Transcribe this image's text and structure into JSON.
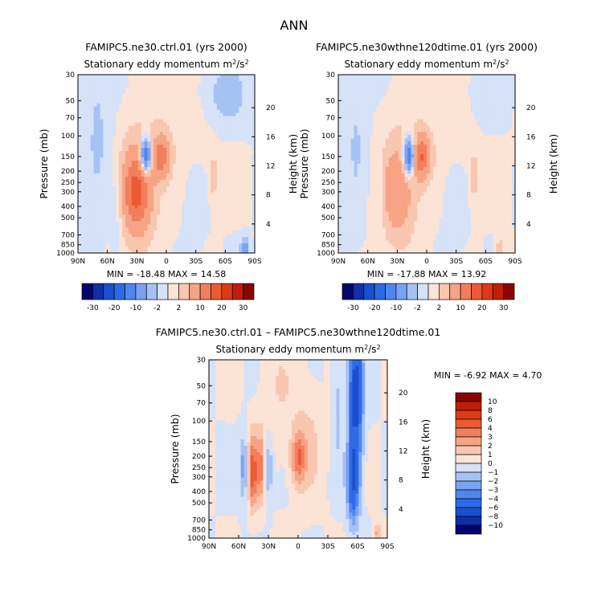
{
  "page_title": "ANN",
  "chart_data": [
    {
      "type": "heatmap",
      "title": "FAMIPC5.ne30.ctrl.01 (yrs 2000)",
      "subtitle": "Stationary eddy momentum",
      "units_base": "m",
      "units_sup": "2",
      "units_tail": "/s",
      "units_sup2": "2",
      "xlabel": "",
      "ylabel": "Pressure (mb)",
      "ylabel_right": "Height (km)",
      "x_ticks": [
        "90N",
        "60N",
        "30N",
        "0",
        "30S",
        "60S",
        "90S"
      ],
      "y_ticks": [
        "30",
        "50",
        "70",
        "100",
        "150",
        "200",
        "250",
        "300",
        "400",
        "500",
        "700",
        "850",
        "1000"
      ],
      "height_ticks": [
        "20",
        "16",
        "12",
        "8",
        "4"
      ],
      "min_label": "MIN =",
      "min_value": "-18.48",
      "max_label": "MAX =",
      "max_value": "14.58",
      "blobs": [
        {
          "lat": 30,
          "p": 300,
          "sx": 10,
          "sy": 0.55,
          "v": 14.58
        },
        {
          "lat": 27,
          "p": 250,
          "sx": 16,
          "sy": 0.9,
          "v": 3
        },
        {
          "lat": 5,
          "p": 150,
          "sx": 6,
          "sy": 0.3,
          "v": 12
        },
        {
          "lat": 21,
          "p": 150,
          "sx": 4,
          "sy": 0.25,
          "v": -18.48
        },
        {
          "lat": 70,
          "p": 80,
          "sx": 9,
          "sy": 1.2,
          "v": -2.5
        },
        {
          "lat": -58,
          "p": 45,
          "sx": 18,
          "sy": 0.5,
          "v": -4
        },
        {
          "lat": 50,
          "p": 350,
          "sx": 4,
          "sy": 0.6,
          "v": -2.5
        },
        {
          "lat": -48,
          "p": 230,
          "sx": 2.5,
          "sy": 0.4,
          "v": 3
        },
        {
          "lat": -28,
          "p": 350,
          "sx": 7,
          "sy": 0.6,
          "v": -1.5
        },
        {
          "lat": -80,
          "p": 900,
          "sx": 3,
          "sy": 0.12,
          "v": -8
        },
        {
          "lat": -30,
          "p": 60,
          "sx": 30,
          "sy": 0.9,
          "v": 1.5
        }
      ]
    },
    {
      "type": "heatmap",
      "title": "FAMIPC5.ne30wthne120dtime.01 (yrs 2000)",
      "subtitle": "Stationary eddy momentum",
      "units_base": "m",
      "units_sup": "2",
      "units_tail": "/s",
      "units_sup2": "2",
      "xlabel": "",
      "ylabel": "Pressure (mb)",
      "ylabel_right": "Height (km)",
      "x_ticks": [
        "90N",
        "60N",
        "30N",
        "0",
        "30S",
        "60S",
        "90S"
      ],
      "y_ticks": [
        "30",
        "50",
        "70",
        "100",
        "150",
        "200",
        "250",
        "300",
        "400",
        "500",
        "700",
        "850",
        "1000"
      ],
      "height_ticks": [
        "20",
        "16",
        "12",
        "8",
        "4"
      ],
      "min_label": "MIN =",
      "min_value": "-17.88",
      "max_label": "MAX =",
      "max_value": "13.92",
      "blobs": [
        {
          "lat": 30,
          "p": 300,
          "sx": 11,
          "sy": 0.6,
          "v": 7
        },
        {
          "lat": 27,
          "p": 250,
          "sx": 16,
          "sy": 0.9,
          "v": 2.5
        },
        {
          "lat": 5,
          "p": 150,
          "sx": 6,
          "sy": 0.3,
          "v": 13.92
        },
        {
          "lat": 18,
          "p": 150,
          "sx": 4,
          "sy": 0.25,
          "v": -17.88
        },
        {
          "lat": 72,
          "p": 100,
          "sx": 8,
          "sy": 1.1,
          "v": -2.2
        },
        {
          "lat": -58,
          "p": 45,
          "sx": 16,
          "sy": 0.5,
          "v": -2.5
        },
        {
          "lat": 48,
          "p": 300,
          "sx": 4,
          "sy": 0.6,
          "v": -2.5
        },
        {
          "lat": -48,
          "p": 230,
          "sx": 3,
          "sy": 0.4,
          "v": 3
        },
        {
          "lat": -28,
          "p": 350,
          "sx": 8,
          "sy": 0.6,
          "v": -1.5
        },
        {
          "lat": -75,
          "p": 900,
          "sx": 3,
          "sy": 0.12,
          "v": 4
        },
        {
          "lat": -30,
          "p": 60,
          "sx": 30,
          "sy": 0.9,
          "v": 1.5
        }
      ]
    },
    {
      "type": "heatmap",
      "title": "FAMIPC5.ne30.ctrl.01 – FAMIPC5.ne30wthne120dtime.01",
      "subtitle": "Stationary eddy momentum",
      "units_base": "m",
      "units_sup": "2",
      "units_tail": "/s",
      "units_sup2": "2",
      "xlabel": "",
      "ylabel": "Pressure (mb)",
      "ylabel_right": "Height (km)",
      "x_ticks": [
        "90N",
        "60N",
        "30N",
        "0",
        "30S",
        "60S",
        "90S"
      ],
      "y_ticks": [
        "30",
        "50",
        "70",
        "100",
        "150",
        "200",
        "250",
        "300",
        "400",
        "500",
        "700",
        "850",
        "1000"
      ],
      "height_ticks": [
        "20",
        "16",
        "12",
        "8",
        "4"
      ],
      "min_label": "MIN =",
      "min_value": "-6.92",
      "max_label": "MAX =",
      "max_value": "4.70",
      "blobs": [
        {
          "lat": 46,
          "p": 270,
          "sx": 3,
          "sy": 0.5,
          "v": 4.7
        },
        {
          "lat": 38,
          "p": 250,
          "sx": 3,
          "sy": 0.5,
          "v": 3.2
        },
        {
          "lat": 55,
          "p": 250,
          "sx": 3,
          "sy": 0.45,
          "v": -2.5
        },
        {
          "lat": 30,
          "p": 250,
          "sx": 3,
          "sy": 0.45,
          "v": -2.2
        },
        {
          "lat": 0,
          "p": 210,
          "sx": 5,
          "sy": 0.35,
          "v": 3.5
        },
        {
          "lat": -10,
          "p": 150,
          "sx": 10,
          "sy": 0.8,
          "v": 1.2
        },
        {
          "lat": -58,
          "p": 60,
          "sx": 5,
          "sy": 1.2,
          "v": -6.92
        },
        {
          "lat": -55,
          "p": 350,
          "sx": 4,
          "sy": 0.5,
          "v": -4.5
        },
        {
          "lat": -40,
          "p": 60,
          "sx": 4,
          "sy": 1.0,
          "v": -1.3
        },
        {
          "lat": 20,
          "p": 60,
          "sx": 15,
          "sy": 1.0,
          "v": 0.8
        },
        {
          "lat": -80,
          "p": 900,
          "sx": 3,
          "sy": 0.12,
          "v": 2.5
        }
      ]
    }
  ],
  "colorbar_abs": {
    "labels": [
      "-30",
      "-20",
      "-10",
      "-2",
      "2",
      "10",
      "20",
      "30"
    ],
    "levels": [
      -35,
      -30,
      -25,
      -20,
      -15,
      -10,
      -5,
      -2,
      0,
      2,
      5,
      10,
      15,
      20,
      25,
      30,
      35
    ],
    "colors": [
      "#05056f",
      "#1030a8",
      "#1a4fd0",
      "#2d6be6",
      "#4f86ee",
      "#7aa2f2",
      "#a6c2f5",
      "#d5e2f8",
      "#fbe3d5",
      "#f9c6b0",
      "#f6a485",
      "#f27e5c",
      "#ec5a35",
      "#dd3a18",
      "#bf1f0a",
      "#870700"
    ]
  },
  "colorbar_diff": {
    "labels": [
      "10",
      "8",
      "6",
      "4",
      "3",
      "2",
      "1",
      "0",
      "−1",
      "−2",
      "−3",
      "−4",
      "−6",
      "−8",
      "−10"
    ],
    "levels": [
      -12,
      -10,
      -8,
      -6,
      -4,
      -3,
      -2,
      -1,
      0,
      1,
      2,
      3,
      4,
      6,
      8,
      10,
      12
    ],
    "colors": [
      "#05056f",
      "#1030a8",
      "#1a4fd0",
      "#2d6be6",
      "#4f86ee",
      "#7aa2f2",
      "#a6c2f5",
      "#d5e2f8",
      "#fbe3d5",
      "#f9c6b0",
      "#f6a485",
      "#f27e5c",
      "#ec5a35",
      "#dd3a18",
      "#bf1f0a",
      "#870700"
    ]
  }
}
